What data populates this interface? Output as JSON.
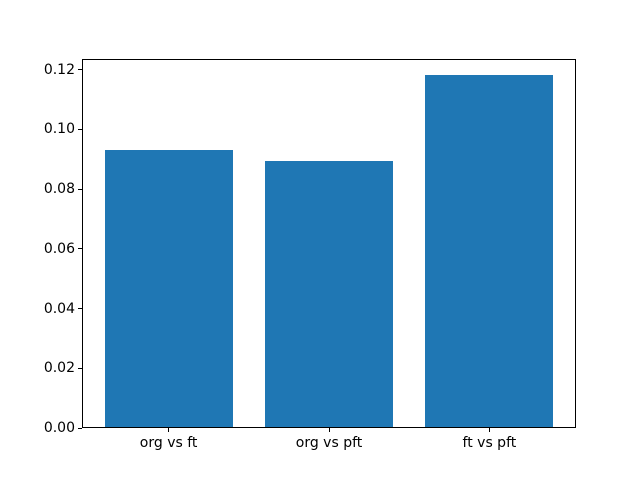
{
  "figure": {
    "background_color": "#ffffff",
    "spine_color": "#000000",
    "text_color": "#000000"
  },
  "chart_data": {
    "type": "bar",
    "categories": [
      "org vs ft",
      "org vs pft",
      "ft vs pft"
    ],
    "values": [
      0.0932,
      0.0895,
      0.1183
    ],
    "title": "",
    "xlabel": "",
    "ylabel": "",
    "ylim": [
      0,
      0.1235
    ],
    "yticks": [
      0,
      0.02,
      0.04,
      0.06,
      0.08,
      0.1,
      0.12
    ],
    "ytick_labels": [
      "0.00",
      "0.02",
      "0.04",
      "0.06",
      "0.08",
      "0.10",
      "0.12"
    ],
    "bar_color": "#1f77b4",
    "grid": false,
    "legend": null
  }
}
